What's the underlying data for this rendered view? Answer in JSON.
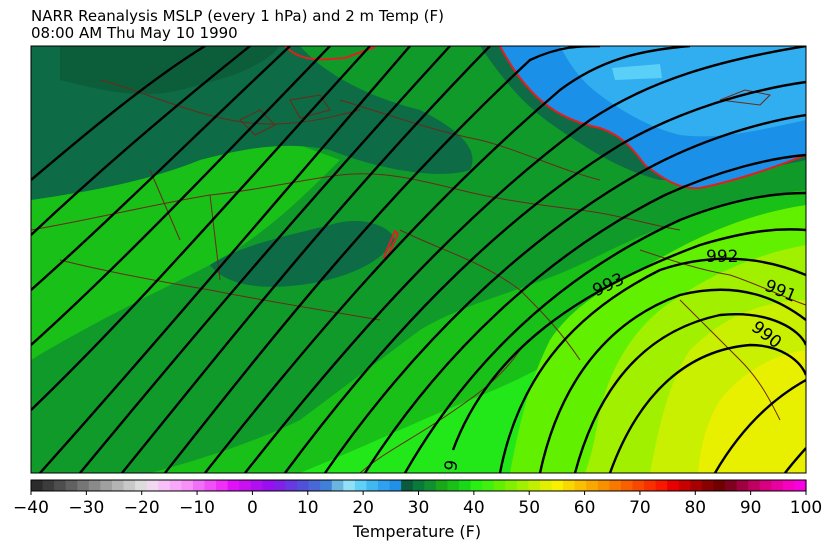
{
  "title_line1": "NARR Reanalysis MSLP (every 1 hPa) and 2 m Temp (F)",
  "title_line2": "08:00 AM Thu May 10 1990",
  "contour_labels": [
    {
      "name": "isobar-993-label",
      "text": "993"
    },
    {
      "name": "isobar-992-label",
      "text": "992"
    },
    {
      "name": "isobar-991-label",
      "text": "991"
    },
    {
      "name": "isobar-990-label",
      "text": "990"
    },
    {
      "name": "isobar-bottom-label",
      "text": "9"
    }
  ],
  "colorbar": {
    "label": "Temperature (F)",
    "min": -40,
    "max": 100,
    "ticks": [
      "−40",
      "−30",
      "−20",
      "−10",
      "0",
      "10",
      "20",
      "30",
      "40",
      "50",
      "60",
      "70",
      "80",
      "90",
      "100"
    ],
    "colors": [
      "#2b2b2b",
      "#3c3c3c",
      "#4e4e4e",
      "#616161",
      "#767676",
      "#8a8a8a",
      "#a0a0a0",
      "#b4b4b4",
      "#c8c8c8",
      "#dcdcdc",
      "#f0d8f0",
      "#f8c0f8",
      "#f8a8f8",
      "#f890f8",
      "#f070f8",
      "#f050f8",
      "#f030f8",
      "#e010f8",
      "#c810f0",
      "#b010f0",
      "#9810f0",
      "#8020e8",
      "#6838e0",
      "#5050d8",
      "#4868d8",
      "#4080d8",
      "#6ab4e0",
      "#90e0f8",
      "#60d0f8",
      "#40b8f0",
      "#30a0f0",
      "#2090e8",
      "#0a5a3c",
      "#0a7a3c",
      "#109030",
      "#18a818",
      "#18c018",
      "#18d818",
      "#28f010",
      "#40f010",
      "#60f000",
      "#80f000",
      "#a0f000",
      "#c0f000",
      "#e0f000",
      "#f8f000",
      "#f8d800",
      "#f8c000",
      "#f8a800",
      "#f89000",
      "#f87800",
      "#f86000",
      "#f84800",
      "#f83000",
      "#f81800",
      "#e80000",
      "#c80000",
      "#a80000",
      "#880000",
      "#700000",
      "#800020",
      "#a00040",
      "#c00060",
      "#d80080",
      "#e800a0",
      "#f800c0",
      "#f800e0"
    ]
  },
  "legend_colors": {
    "dark_green": "#0d6b45",
    "mid_green": "#109a2a",
    "green": "#18c018",
    "bright_green": "#22e81a",
    "lime": "#90f000",
    "yellow": "#e8f000",
    "sky_blue": "#30aef0",
    "blue": "#1a90e8",
    "freezing_line": "#e02020",
    "border": "#6b2a1a"
  }
}
